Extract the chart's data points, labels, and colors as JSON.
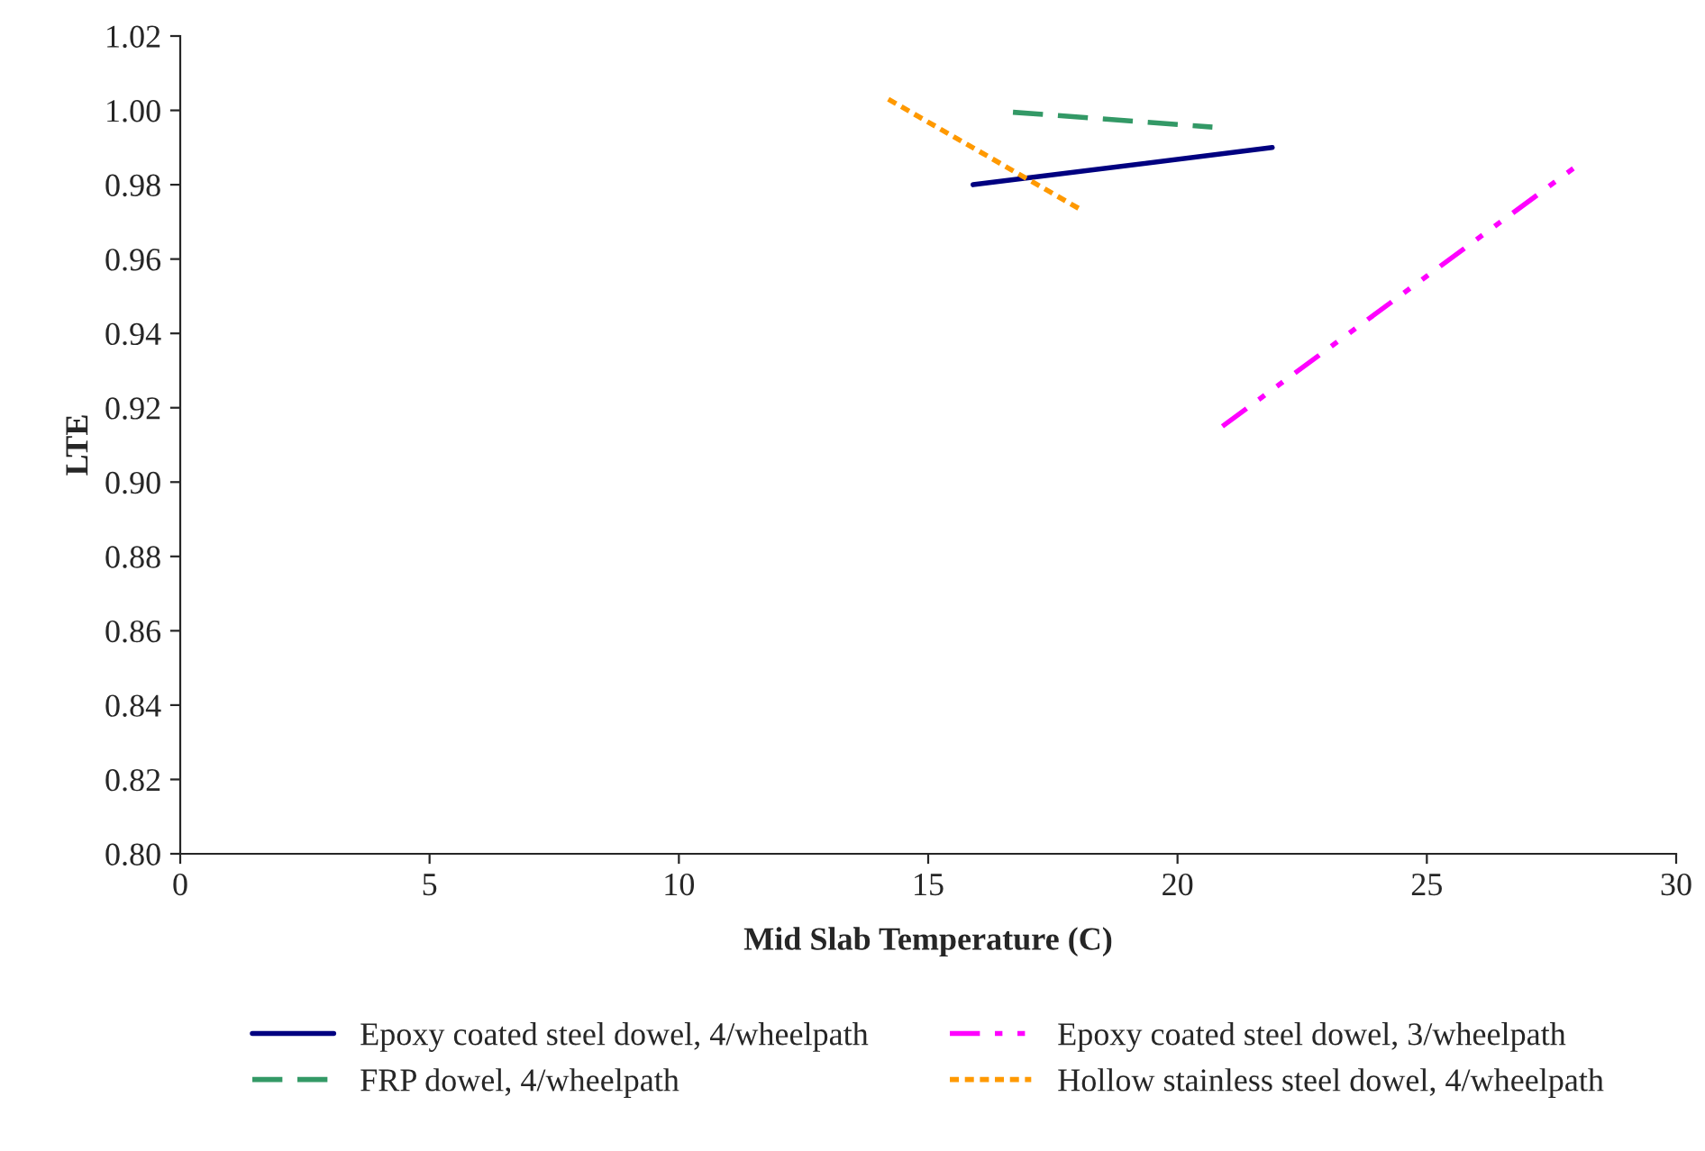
{
  "chart_data": {
    "type": "line",
    "xlabel": "Mid Slab Temperature (C)",
    "ylabel": "LTE",
    "xlim": [
      0,
      30
    ],
    "xticks": [
      0,
      5,
      10,
      15,
      20,
      25,
      30
    ],
    "ylim": [
      0.8,
      1.02
    ],
    "yticks": [
      {
        "value": 0.8,
        "label": "0.80"
      },
      {
        "value": 0.82,
        "label": "0.82"
      },
      {
        "value": 0.84,
        "label": "0.84"
      },
      {
        "value": 0.86,
        "label": "0.86"
      },
      {
        "value": 0.88,
        "label": "0.88"
      },
      {
        "value": 0.9,
        "label": "0.90"
      },
      {
        "value": 0.92,
        "label": "0.92"
      },
      {
        "value": 0.94,
        "label": "0.94"
      },
      {
        "value": 0.96,
        "label": "0.96"
      },
      {
        "value": 0.98,
        "label": "0.98"
      },
      {
        "value": 1.0,
        "label": "1.00"
      },
      {
        "value": 1.02,
        "label": "1.02"
      }
    ],
    "grid": false,
    "legend": "bottom",
    "marker": "none",
    "series": [
      {
        "name": "Epoxy coated steel dowel, 4/wheelpath",
        "color": "#000080",
        "line_style": "solid",
        "x": [
          15.9,
          21.9
        ],
        "values": [
          0.98,
          0.99
        ]
      },
      {
        "name": "Epoxy coated steel dowel, 3/wheelpath",
        "color": "#ff00ff",
        "line_style": "dashdot",
        "x": [
          20.9,
          28.0
        ],
        "values": [
          0.915,
          0.985
        ]
      },
      {
        "name": "FRP dowel, 4/wheelpath",
        "color": "#339966",
        "line_style": "dashed",
        "x": [
          16.7,
          20.7
        ],
        "values": [
          0.9995,
          0.9955
        ]
      },
      {
        "name": "Hollow stainless steel dowel, 4/wheelpath",
        "color": "#ff9900",
        "line_style": "dotted",
        "x": [
          14.2,
          18.1
        ],
        "values": [
          1.003,
          0.973
        ]
      }
    ]
  }
}
